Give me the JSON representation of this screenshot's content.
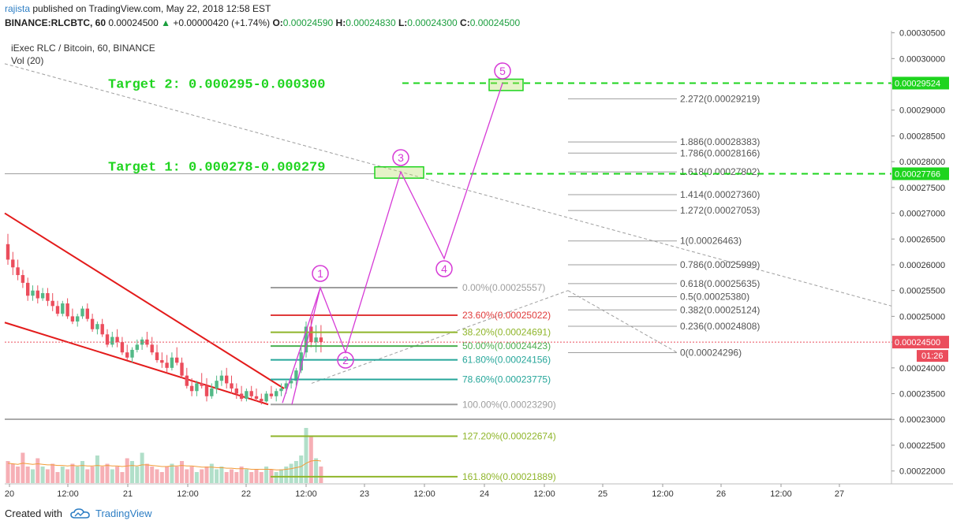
{
  "header": {
    "author": "rajista",
    "published_text": "published on TradingView.com, May 22, 2018 12:58 EST",
    "symbol_interval": "BINANCE:RLCBTC, 60",
    "price": "0.00024500",
    "change": "+0.00000420 (+1.74%)",
    "o_label": "O:",
    "o_value": "0.00024590",
    "h_label": "H:",
    "h_value": "0.00024830",
    "l_label": "L:",
    "l_value": "0.00024300",
    "c_label": "C:",
    "c_value": "0.00024500"
  },
  "footer": {
    "created_with": "Created with",
    "brand": "TradingView"
  },
  "colors": {
    "bull": "#53b987",
    "bear": "#eb4d5c",
    "wedge": "#e31b1b",
    "target": "#1ed41e",
    "path": "#d63ad6",
    "price_tag": "#eb4d5c"
  },
  "chart_data": {
    "type": "candlestick",
    "title": "iExec RLC / Bitcoin, 60, BINANCE",
    "volume_label": "Vol (20)",
    "y_scale": "linear",
    "y_range": [
      0.0002175,
      0.0003054
    ],
    "y_ticks": [
      "0.00030500",
      "0.00030000",
      "0.00029500",
      "0.00029000",
      "0.00028500",
      "0.00028000",
      "0.00027500",
      "0.00027000",
      "0.00026500",
      "0.00026000",
      "0.00025500",
      "0.00025000",
      "0.00024500",
      "0.00024000",
      "0.00023500",
      "0.00023000",
      "0.00022500",
      "0.00022000"
    ],
    "x_ticks": [
      "20",
      "12:00",
      "21",
      "12:00",
      "22",
      "12:00",
      "23",
      "12:00",
      "24",
      "12:00",
      "25",
      "12:00",
      "26",
      "12:00",
      "27"
    ],
    "last_price": {
      "value": 0.000245,
      "label": "0.00024500",
      "countdown": "01:26"
    },
    "candles": [
      [
        0.000264,
        0.000266,
        0.00026,
        0.000261
      ],
      [
        0.000261,
        0.0002625,
        0.000258,
        0.0002595
      ],
      [
        0.0002595,
        0.000261,
        0.000257,
        0.000258
      ],
      [
        0.000258,
        0.000259,
        0.0002555,
        0.0002565
      ],
      [
        0.0002565,
        0.0002575,
        0.000253,
        0.000254
      ],
      [
        0.000254,
        0.000256,
        0.000253,
        0.000255
      ],
      [
        0.000255,
        0.000256,
        0.0002525,
        0.0002535
      ],
      [
        0.0002535,
        0.0002555,
        0.000253,
        0.0002545
      ],
      [
        0.0002545,
        0.0002555,
        0.000252,
        0.000253
      ],
      [
        0.000253,
        0.0002545,
        0.000251,
        0.000252
      ],
      [
        0.000252,
        0.000253,
        0.00025,
        0.0002505
      ],
      [
        0.0002505,
        0.000253,
        0.00025,
        0.0002525
      ],
      [
        0.0002525,
        0.0002535,
        0.0002495,
        0.00025
      ],
      [
        0.00025,
        0.0002515,
        0.0002485,
        0.000249
      ],
      [
        0.000249,
        0.0002505,
        0.000248,
        0.00025
      ],
      [
        0.00025,
        0.000252,
        0.0002495,
        0.0002515
      ],
      [
        0.0002515,
        0.0002525,
        0.000249,
        0.0002495
      ],
      [
        0.0002495,
        0.0002505,
        0.000247,
        0.0002475
      ],
      [
        0.0002475,
        0.000249,
        0.0002465,
        0.0002485
      ],
      [
        0.0002485,
        0.0002495,
        0.000246,
        0.0002465
      ],
      [
        0.0002465,
        0.0002475,
        0.000244,
        0.0002445
      ],
      [
        0.0002445,
        0.000247,
        0.000244,
        0.000246
      ],
      [
        0.000246,
        0.0002475,
        0.000244,
        0.000245
      ],
      [
        0.000245,
        0.000246,
        0.0002425,
        0.000243
      ],
      [
        0.000243,
        0.0002445,
        0.0002415,
        0.000242
      ],
      [
        0.000242,
        0.000244,
        0.000241,
        0.0002435
      ],
      [
        0.0002435,
        0.0002455,
        0.000243,
        0.0002445
      ],
      [
        0.0002445,
        0.000246,
        0.0002435,
        0.0002455
      ],
      [
        0.0002455,
        0.000247,
        0.000244,
        0.0002445
      ],
      [
        0.0002445,
        0.000246,
        0.0002425,
        0.000243
      ],
      [
        0.000243,
        0.0002445,
        0.000241,
        0.0002415
      ],
      [
        0.0002415,
        0.000243,
        0.00024,
        0.000241
      ],
      [
        0.000241,
        0.0002425,
        0.000239,
        0.00024
      ],
      [
        0.00024,
        0.000243,
        0.0002395,
        0.000242
      ],
      [
        0.000242,
        0.000244,
        0.0002405,
        0.000241
      ],
      [
        0.000241,
        0.000242,
        0.000238,
        0.0002385
      ],
      [
        0.0002385,
        0.00024,
        0.000236,
        0.0002365
      ],
      [
        0.0002365,
        0.000238,
        0.0002345,
        0.0002355
      ],
      [
        0.0002355,
        0.0002375,
        0.0002345,
        0.000237
      ],
      [
        0.000237,
        0.000239,
        0.000236,
        0.0002365
      ],
      [
        0.0002365,
        0.000238,
        0.0002335,
        0.0002345
      ],
      [
        0.0002345,
        0.000237,
        0.000234,
        0.000236
      ],
      [
        0.000236,
        0.0002385,
        0.000235,
        0.0002375
      ],
      [
        0.0002375,
        0.0002395,
        0.0002365,
        0.0002385
      ],
      [
        0.0002385,
        0.00024,
        0.000236,
        0.000237
      ],
      [
        0.000237,
        0.0002385,
        0.000235,
        0.000236
      ],
      [
        0.000236,
        0.000237,
        0.000234,
        0.000235
      ],
      [
        0.000235,
        0.0002365,
        0.0002335,
        0.000234
      ],
      [
        0.000234,
        0.000236,
        0.0002335,
        0.0002355
      ],
      [
        0.0002355,
        0.0002365,
        0.000234,
        0.0002345
      ],
      [
        0.0002345,
        0.000236,
        0.0002335,
        0.000234
      ],
      [
        0.000234,
        0.000235,
        0.0002329,
        0.0002335
      ],
      [
        0.0002335,
        0.0002355,
        0.0002333,
        0.000235
      ],
      [
        0.000235,
        0.0002365,
        0.000234,
        0.0002345
      ],
      [
        0.0002345,
        0.000236,
        0.0002335,
        0.0002355
      ],
      [
        0.0002355,
        0.000237,
        0.0002345,
        0.000236
      ],
      [
        0.000236,
        0.0002375,
        0.000235,
        0.000237
      ],
      [
        0.000237,
        0.0002385,
        0.000236,
        0.0002375
      ],
      [
        0.0002375,
        0.00024,
        0.0002365,
        0.0002395
      ],
      [
        0.0002395,
        0.000244,
        0.000239,
        0.000243
      ],
      [
        0.000243,
        0.000249,
        0.000242,
        0.000248
      ],
      [
        0.000248,
        0.00025,
        0.000244,
        0.000245
      ],
      [
        0.000245,
        0.0002483,
        0.000243,
        0.0002459
      ],
      [
        0.0002459,
        0.0002483,
        0.000243,
        0.000245
      ]
    ],
    "volumes": [
      0.4,
      0.35,
      0.3,
      0.55,
      0.3,
      0.25,
      0.45,
      0.3,
      0.25,
      0.35,
      0.2,
      0.3,
      0.25,
      0.35,
      0.3,
      0.4,
      0.25,
      0.3,
      0.5,
      0.3,
      0.35,
      0.25,
      0.3,
      0.2,
      0.45,
      0.4,
      0.3,
      0.55,
      0.35,
      0.3,
      0.25,
      0.2,
      0.3,
      0.35,
      0.3,
      0.4,
      0.25,
      0.3,
      0.2,
      0.25,
      0.3,
      0.35,
      0.25,
      0.3,
      0.2,
      0.25,
      0.2,
      0.3,
      0.25,
      0.2,
      0.25,
      0.2,
      0.3,
      0.25,
      0.2,
      0.25,
      0.3,
      0.35,
      0.4,
      0.5,
      1.0,
      0.85,
      0.45,
      0.3
    ],
    "volume_ma": [
      0.36,
      0.35,
      0.34,
      0.36,
      0.35,
      0.34,
      0.35,
      0.34,
      0.33,
      0.33,
      0.32,
      0.32,
      0.31,
      0.32,
      0.31,
      0.32,
      0.31,
      0.31,
      0.32,
      0.31,
      0.32,
      0.31,
      0.31,
      0.3,
      0.31,
      0.32,
      0.31,
      0.33,
      0.33,
      0.32,
      0.31,
      0.3,
      0.3,
      0.31,
      0.31,
      0.32,
      0.31,
      0.31,
      0.3,
      0.29,
      0.29,
      0.29,
      0.28,
      0.28,
      0.27,
      0.27,
      0.26,
      0.26,
      0.26,
      0.25,
      0.25,
      0.25,
      0.25,
      0.25,
      0.24,
      0.24,
      0.25,
      0.26,
      0.28,
      0.3,
      0.36,
      0.4,
      0.41,
      0.4
    ],
    "fib_retracement": [
      {
        "label": "0.00%(0.00025557)",
        "value": 0.00025557,
        "color": "#9e9e9e"
      },
      {
        "label": "23.60%(0.00025022)",
        "value": 0.00025022,
        "color": "#e03b3b"
      },
      {
        "label": "38.20%(0.00024691)",
        "value": 0.00024691,
        "color": "#8fb52a"
      },
      {
        "label": "50.00%(0.00024423)",
        "value": 0.00024423,
        "color": "#4caf50"
      },
      {
        "label": "61.80%(0.00024156)",
        "value": 0.00024156,
        "color": "#26a69a"
      },
      {
        "label": "78.60%(0.00023775)",
        "value": 0.00023775,
        "color": "#26a69a"
      },
      {
        "label": "100.00%(0.00023290)",
        "value": 0.0002329,
        "color": "#9e9e9e"
      },
      {
        "label": "127.20%(0.00022674)",
        "value": 0.00022674,
        "color": "#8fb52a"
      },
      {
        "label": "161.80%(0.00021889)",
        "value": 0.00021889,
        "color": "#8fb52a"
      }
    ],
    "fib_extension": [
      {
        "label": "2.272(0.00029219)",
        "value": 0.00029219
      },
      {
        "label": "1.886(0.00028383)",
        "value": 0.00028383
      },
      {
        "label": "1.786(0.00028166)",
        "value": 0.00028166
      },
      {
        "label": "1.618(0.00027802)",
        "value": 0.00027802
      },
      {
        "label": "1.414(0.00027360)",
        "value": 0.0002736
      },
      {
        "label": "1.272(0.00027053)",
        "value": 0.00027053
      },
      {
        "label": "1(0.00026463)",
        "value": 0.00026463
      },
      {
        "label": "0.786(0.00025999)",
        "value": 0.00025999
      },
      {
        "label": "0.618(0.00025635)",
        "value": 0.00025635
      },
      {
        "label": "0.5(0.00025380)",
        "value": 0.0002538
      },
      {
        "label": "0.382(0.00025124)",
        "value": 0.00025124
      },
      {
        "label": "0.236(0.00024808)",
        "value": 0.00024808
      },
      {
        "label": "0(0.00024296)",
        "value": 0.00024296
      }
    ],
    "targets": [
      {
        "text": "Target 2: 0.000295-0.000300",
        "value": 0.00029524,
        "tag": "0.00029524"
      },
      {
        "text": "Target 1: 0.000278-0.000279",
        "value": 0.00027766,
        "tag": "0.00027766"
      }
    ],
    "wave_points": [
      {
        "label": "1",
        "value": 0.00025557
      },
      {
        "label": "2",
        "value": 0.000243
      },
      {
        "label": "3",
        "value": 0.00027802
      },
      {
        "label": "4",
        "value": 0.00026122
      },
      {
        "label": "5",
        "value": 0.00029524
      }
    ]
  }
}
